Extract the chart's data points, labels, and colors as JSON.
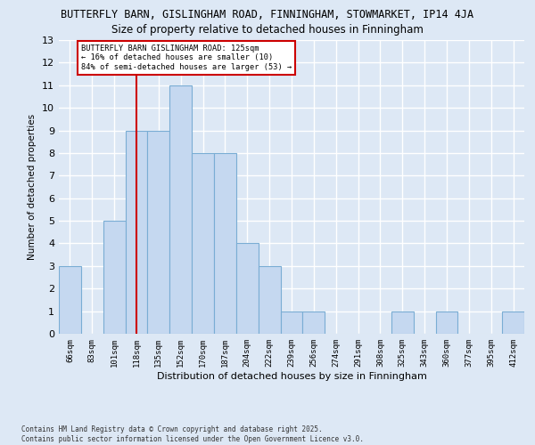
{
  "title1": "BUTTERFLY BARN, GISLINGHAM ROAD, FINNINGHAM, STOWMARKET, IP14 4JA",
  "title2": "Size of property relative to detached houses in Finningham",
  "xlabel": "Distribution of detached houses by size in Finningham",
  "ylabel": "Number of detached properties",
  "categories": [
    "66sqm",
    "83sqm",
    "101sqm",
    "118sqm",
    "135sqm",
    "152sqm",
    "170sqm",
    "187sqm",
    "204sqm",
    "222sqm",
    "239sqm",
    "256sqm",
    "274sqm",
    "291sqm",
    "308sqm",
    "325sqm",
    "343sqm",
    "360sqm",
    "377sqm",
    "395sqm",
    "412sqm"
  ],
  "values": [
    3,
    0,
    5,
    9,
    9,
    11,
    8,
    8,
    4,
    3,
    1,
    1,
    0,
    0,
    0,
    1,
    0,
    1,
    0,
    0,
    1
  ],
  "bar_color": "#c5d8f0",
  "bar_edge_color": "#7aadd4",
  "reference_line_x": 3,
  "annotation_text": "BUTTERFLY BARN GISLINGHAM ROAD: 125sqm\n← 16% of detached houses are smaller (10)\n84% of semi-detached houses are larger (53) →",
  "annotation_box_color": "#ffffff",
  "annotation_box_edge": "#cc0000",
  "ref_line_color": "#cc0000",
  "footer": "Contains HM Land Registry data © Crown copyright and database right 2025.\nContains public sector information licensed under the Open Government Licence v3.0.",
  "ylim": [
    0,
    13
  ],
  "yticks": [
    0,
    1,
    2,
    3,
    4,
    5,
    6,
    7,
    8,
    9,
    10,
    11,
    12,
    13
  ],
  "bg_color": "#dde8f5",
  "grid_color": "#ffffff",
  "fig_bg_color": "#dde8f5",
  "title1_fontsize": 8.5,
  "title2_fontsize": 8.5
}
